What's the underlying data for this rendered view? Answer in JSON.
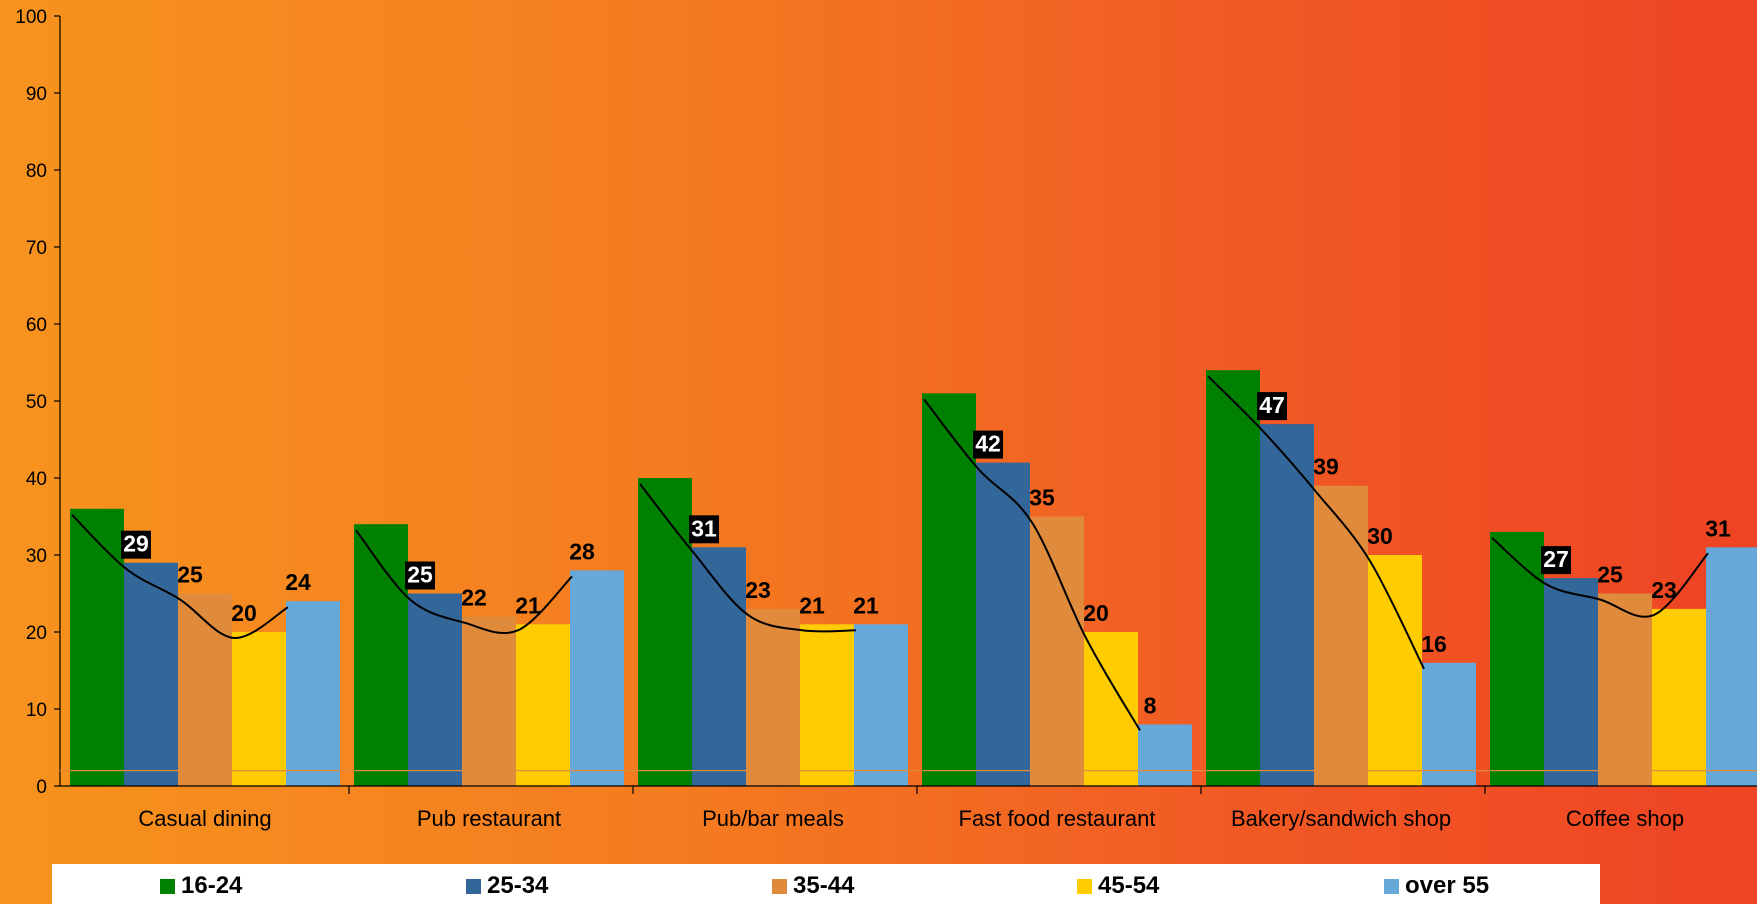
{
  "chart_data": {
    "type": "bar",
    "categories": [
      "Casual dining",
      "Pub restaurant",
      "Pub/bar meals",
      "Fast food restaurant",
      "Bakery/sandwich shop",
      "Coffee shop"
    ],
    "series": [
      {
        "name": "16-24",
        "color": "#008000",
        "values": [
          36,
          34,
          40,
          51,
          54,
          33
        ]
      },
      {
        "name": "25-34",
        "color": "#336699",
        "values": [
          29,
          25,
          31,
          42,
          47,
          27
        ]
      },
      {
        "name": "35-44",
        "color": "#e08a3c",
        "values": [
          25,
          22,
          23,
          35,
          39,
          25
        ]
      },
      {
        "name": "45-54",
        "color": "#ffcc00",
        "values": [
          20,
          21,
          21,
          20,
          30,
          23
        ]
      },
      {
        "name": "over 55",
        "color": "#66a8d8",
        "values": [
          24,
          28,
          21,
          8,
          16,
          31
        ]
      }
    ],
    "labeled_series": [
      1,
      2,
      3,
      4
    ],
    "yticks": [
      0,
      10,
      20,
      30,
      40,
      50,
      60,
      70,
      80,
      90,
      100
    ],
    "ylim": [
      0,
      100
    ],
    "reference_line_value": 2,
    "reference_line_color": "#e08a3c",
    "trend_lines": true,
    "legend_position": "bottom",
    "title": "",
    "xlabel": "",
    "ylabel": ""
  }
}
